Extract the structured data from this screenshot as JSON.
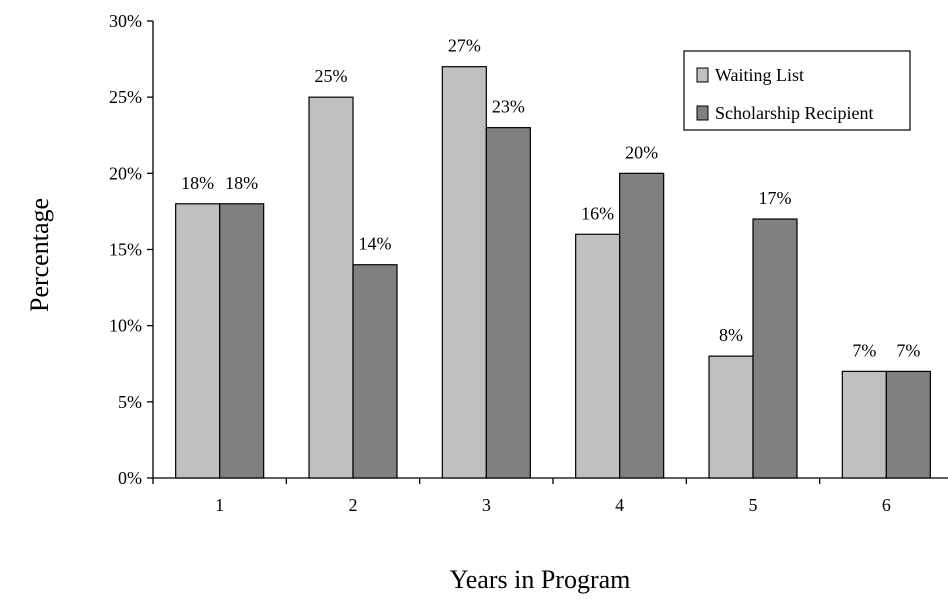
{
  "chart_data": {
    "type": "bar",
    "categories": [
      "1",
      "2",
      "3",
      "4",
      "5",
      "6"
    ],
    "series": [
      {
        "name": "Waiting List",
        "values": [
          18,
          25,
          27,
          16,
          8,
          7
        ],
        "color": "#c0c0c0"
      },
      {
        "name": "Scholarship Recipient",
        "values": [
          18,
          14,
          23,
          20,
          17,
          7
        ],
        "color": "#808080"
      }
    ],
    "data_labels": [
      [
        "18%",
        "25%",
        "27%",
        "16%",
        "8%",
        "7%"
      ],
      [
        "18%",
        "14%",
        "23%",
        "20%",
        "17%",
        "7%"
      ]
    ],
    "title": "",
    "xlabel": "Years in Program",
    "ylabel": "Percentage",
    "ylim": [
      0,
      30
    ],
    "yticks": [
      0,
      5,
      10,
      15,
      20,
      25,
      30
    ],
    "ytick_labels": [
      "0%",
      "5%",
      "10%",
      "15%",
      "20%",
      "25%",
      "30%"
    ],
    "grid": false,
    "legend": {
      "position": "top-right",
      "entries": [
        "Waiting List",
        "Scholarship Recipient"
      ]
    }
  }
}
